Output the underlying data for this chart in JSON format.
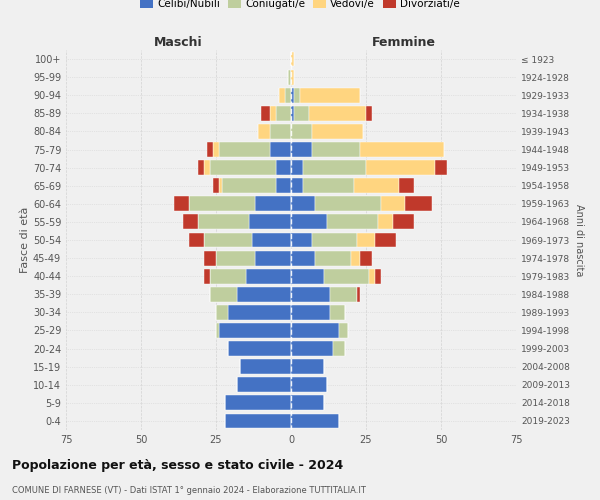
{
  "age_groups": [
    "0-4",
    "5-9",
    "10-14",
    "15-19",
    "20-24",
    "25-29",
    "30-34",
    "35-39",
    "40-44",
    "45-49",
    "50-54",
    "55-59",
    "60-64",
    "65-69",
    "70-74",
    "75-79",
    "80-84",
    "85-89",
    "90-94",
    "95-99",
    "100+"
  ],
  "birth_years": [
    "2019-2023",
    "2014-2018",
    "2009-2013",
    "2004-2008",
    "1999-2003",
    "1994-1998",
    "1989-1993",
    "1984-1988",
    "1979-1983",
    "1974-1978",
    "1969-1973",
    "1964-1968",
    "1959-1963",
    "1954-1958",
    "1949-1953",
    "1944-1948",
    "1939-1943",
    "1934-1938",
    "1929-1933",
    "1924-1928",
    "≤ 1923"
  ],
  "maschi": {
    "celibi": [
      22,
      22,
      18,
      17,
      21,
      24,
      21,
      18,
      15,
      12,
      13,
      14,
      12,
      5,
      5,
      7,
      0,
      0,
      0,
      0,
      0
    ],
    "coniugati": [
      0,
      0,
      0,
      0,
      0,
      1,
      4,
      9,
      12,
      13,
      16,
      17,
      22,
      18,
      22,
      17,
      7,
      5,
      2,
      1,
      0
    ],
    "vedovi": [
      0,
      0,
      0,
      0,
      0,
      0,
      0,
      0,
      0,
      0,
      0,
      0,
      0,
      1,
      2,
      2,
      4,
      2,
      2,
      0,
      0
    ],
    "divorziati": [
      0,
      0,
      0,
      0,
      0,
      0,
      0,
      0,
      2,
      4,
      5,
      5,
      5,
      2,
      2,
      2,
      0,
      3,
      0,
      0,
      0
    ]
  },
  "femmine": {
    "nubili": [
      16,
      11,
      12,
      11,
      14,
      16,
      13,
      13,
      11,
      8,
      7,
      12,
      8,
      4,
      4,
      7,
      0,
      1,
      1,
      0,
      0
    ],
    "coniugate": [
      0,
      0,
      0,
      0,
      4,
      3,
      5,
      9,
      15,
      12,
      15,
      17,
      22,
      17,
      21,
      16,
      7,
      5,
      2,
      0,
      0
    ],
    "vedove": [
      0,
      0,
      0,
      0,
      0,
      0,
      0,
      0,
      2,
      3,
      6,
      5,
      8,
      15,
      23,
      28,
      17,
      19,
      20,
      1,
      1
    ],
    "divorziate": [
      0,
      0,
      0,
      0,
      0,
      0,
      0,
      1,
      2,
      4,
      7,
      7,
      9,
      5,
      4,
      0,
      0,
      2,
      0,
      0,
      0
    ]
  },
  "colors": {
    "celibi_nubili": "#4472C4",
    "coniugati": "#BFCE9E",
    "vedovi": "#FFD580",
    "divorziati": "#C0392B"
  },
  "xlim": 75,
  "title": "Popolazione per età, sesso e stato civile - 2024",
  "subtitle": "COMUNE DI FARNESE (VT) - Dati ISTAT 1° gennaio 2024 - Elaborazione TUTTITALIA.IT",
  "ylabel_left": "Fasce di età",
  "ylabel_right": "Anni di nascita",
  "xlabel_left": "Maschi",
  "xlabel_right": "Femmine",
  "bg_color": "#f0f0f0",
  "grid_color": "#cccccc"
}
